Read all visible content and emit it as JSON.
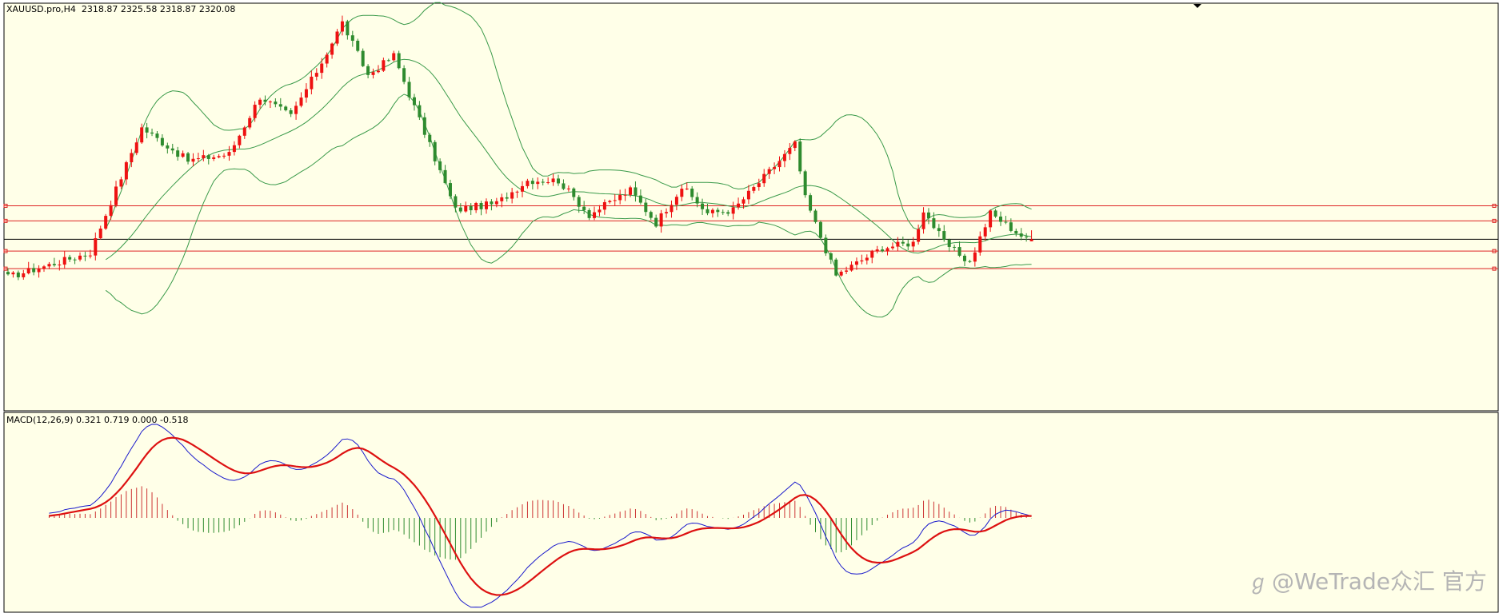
{
  "header": {
    "symbol": "XAUUSD.pro,H4",
    "ohlc": "2318.87 2325.58 2318.87 2320.08"
  },
  "indicator": {
    "label": "MACD(12,26,9) 0.321 0.719 0.000 -0.518"
  },
  "watermark": {
    "text": "@WeTrade众汇 官方",
    "icon": "zhihu-logo-icon"
  },
  "colors": {
    "background": "#ffffe8",
    "bull": "#ee1111",
    "bear": "#2e8b2e",
    "bands": "#3a9a4a",
    "level_lines": "#dd2222",
    "current_price_line": "#000000",
    "macd_line": "#1a1acc",
    "signal_line": "#dd1111",
    "hist_pos": "#cc3333",
    "hist_neg": "#2e8b2e"
  },
  "chart_data": [
    {
      "type": "candlestick",
      "symbol": "XAUUSD.pro",
      "timeframe": "H4",
      "ylim": [
        2220,
        2460
      ],
      "last": {
        "open": 2318.87,
        "high": 2325.58,
        "low": 2318.87,
        "close": 2320.08
      },
      "horizontal_levels": [
        2340.5,
        2331.3,
        2312.9,
        2302.2
      ],
      "current_price": 2320.08,
      "legs": [
        {
          "from": 2297,
          "to": 2312,
          "bars": 16
        },
        {
          "from": 2312,
          "to": 2343,
          "bars": 4
        },
        {
          "from": 2343,
          "to": 2388,
          "bars": 6
        },
        {
          "from": 2388,
          "to": 2368,
          "bars": 9
        },
        {
          "from": 2368,
          "to": 2372,
          "bars": 8
        },
        {
          "from": 2372,
          "to": 2407,
          "bars": 6
        },
        {
          "from": 2407,
          "to": 2395,
          "bars": 6
        },
        {
          "from": 2395,
          "to": 2428,
          "bars": 6
        },
        {
          "from": 2428,
          "to": 2452,
          "bars": 4
        },
        {
          "from": 2452,
          "to": 2420,
          "bars": 5
        },
        {
          "from": 2420,
          "to": 2432,
          "bars": 5
        },
        {
          "from": 2432,
          "to": 2338,
          "bars": 12
        },
        {
          "from": 2338,
          "to": 2342,
          "bars": 8
        },
        {
          "from": 2342,
          "to": 2356,
          "bars": 6
        },
        {
          "from": 2356,
          "to": 2356,
          "bars": 6
        },
        {
          "from": 2356,
          "to": 2335,
          "bars": 6
        },
        {
          "from": 2335,
          "to": 2350,
          "bars": 8
        },
        {
          "from": 2350,
          "to": 2330,
          "bars": 5
        },
        {
          "from": 2330,
          "to": 2352,
          "bars": 5
        },
        {
          "from": 2352,
          "to": 2336,
          "bars": 5
        },
        {
          "from": 2336,
          "to": 2338,
          "bars": 5
        },
        {
          "from": 2338,
          "to": 2378,
          "bars": 12
        },
        {
          "from": 2378,
          "to": 2345,
          "bars": 2
        },
        {
          "from": 2345,
          "to": 2298,
          "bars": 6
        },
        {
          "from": 2298,
          "to": 2315,
          "bars": 9
        },
        {
          "from": 2315,
          "to": 2318,
          "bars": 6
        },
        {
          "from": 2318,
          "to": 2338,
          "bars": 2
        },
        {
          "from": 2338,
          "to": 2318,
          "bars": 4
        },
        {
          "from": 2318,
          "to": 2306,
          "bars": 5
        },
        {
          "from": 2306,
          "to": 2336,
          "bars": 4
        },
        {
          "from": 2336,
          "to": 2320,
          "bars": 7
        }
      ],
      "bollinger": {
        "period": 20,
        "deviations": 2
      }
    },
    {
      "type": "macd",
      "fast": 12,
      "slow": 26,
      "signal": 9,
      "values": {
        "macd": 0.321,
        "signal": 0.719,
        "histogram": 0.0,
        "osma": -0.518
      }
    }
  ]
}
